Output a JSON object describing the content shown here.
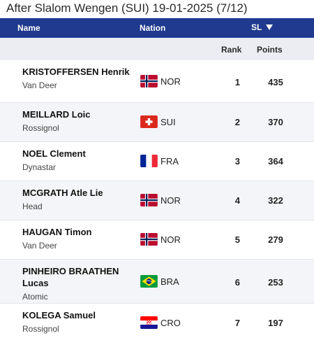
{
  "page": {
    "title": "After Slalom Wengen (SUI) 19-01-2025 (7/12)"
  },
  "header": {
    "name": "Name",
    "nation": "Nation",
    "sl": "SL",
    "rank": "Rank",
    "points": "Points"
  },
  "rows": [
    {
      "last": "KRISTOFFERSEN",
      "first": "Henrik",
      "brand": "Van Deer",
      "nation": "NOR",
      "rank": "1",
      "points": "435"
    },
    {
      "last": "MEILLARD",
      "first": "Loic",
      "brand": "Rossignol",
      "nation": "SUI",
      "rank": "2",
      "points": "370"
    },
    {
      "last": "NOEL",
      "first": "Clement",
      "brand": "Dynastar",
      "nation": "FRA",
      "rank": "3",
      "points": "364"
    },
    {
      "last": "MCGRATH",
      "first": "Atle Lie",
      "brand": "Head",
      "nation": "NOR",
      "rank": "4",
      "points": "322"
    },
    {
      "last": "HAUGAN",
      "first": "Timon",
      "brand": "Van Deer",
      "nation": "NOR",
      "rank": "5",
      "points": "279"
    },
    {
      "last": "PINHEIRO BRAATHEN",
      "first": "Lucas",
      "brand": "Atomic",
      "nation": "BRA",
      "rank": "6",
      "points": "253"
    },
    {
      "last": "KOLEGA",
      "first": "Samuel",
      "brand": "Rossignol",
      "nation": "CRO",
      "rank": "7",
      "points": "197"
    }
  ],
  "colors": {
    "header_bg": "#1f3a8e",
    "subheader_bg": "#ebedf2",
    "alt_row_bg": "#f4f5f8"
  }
}
